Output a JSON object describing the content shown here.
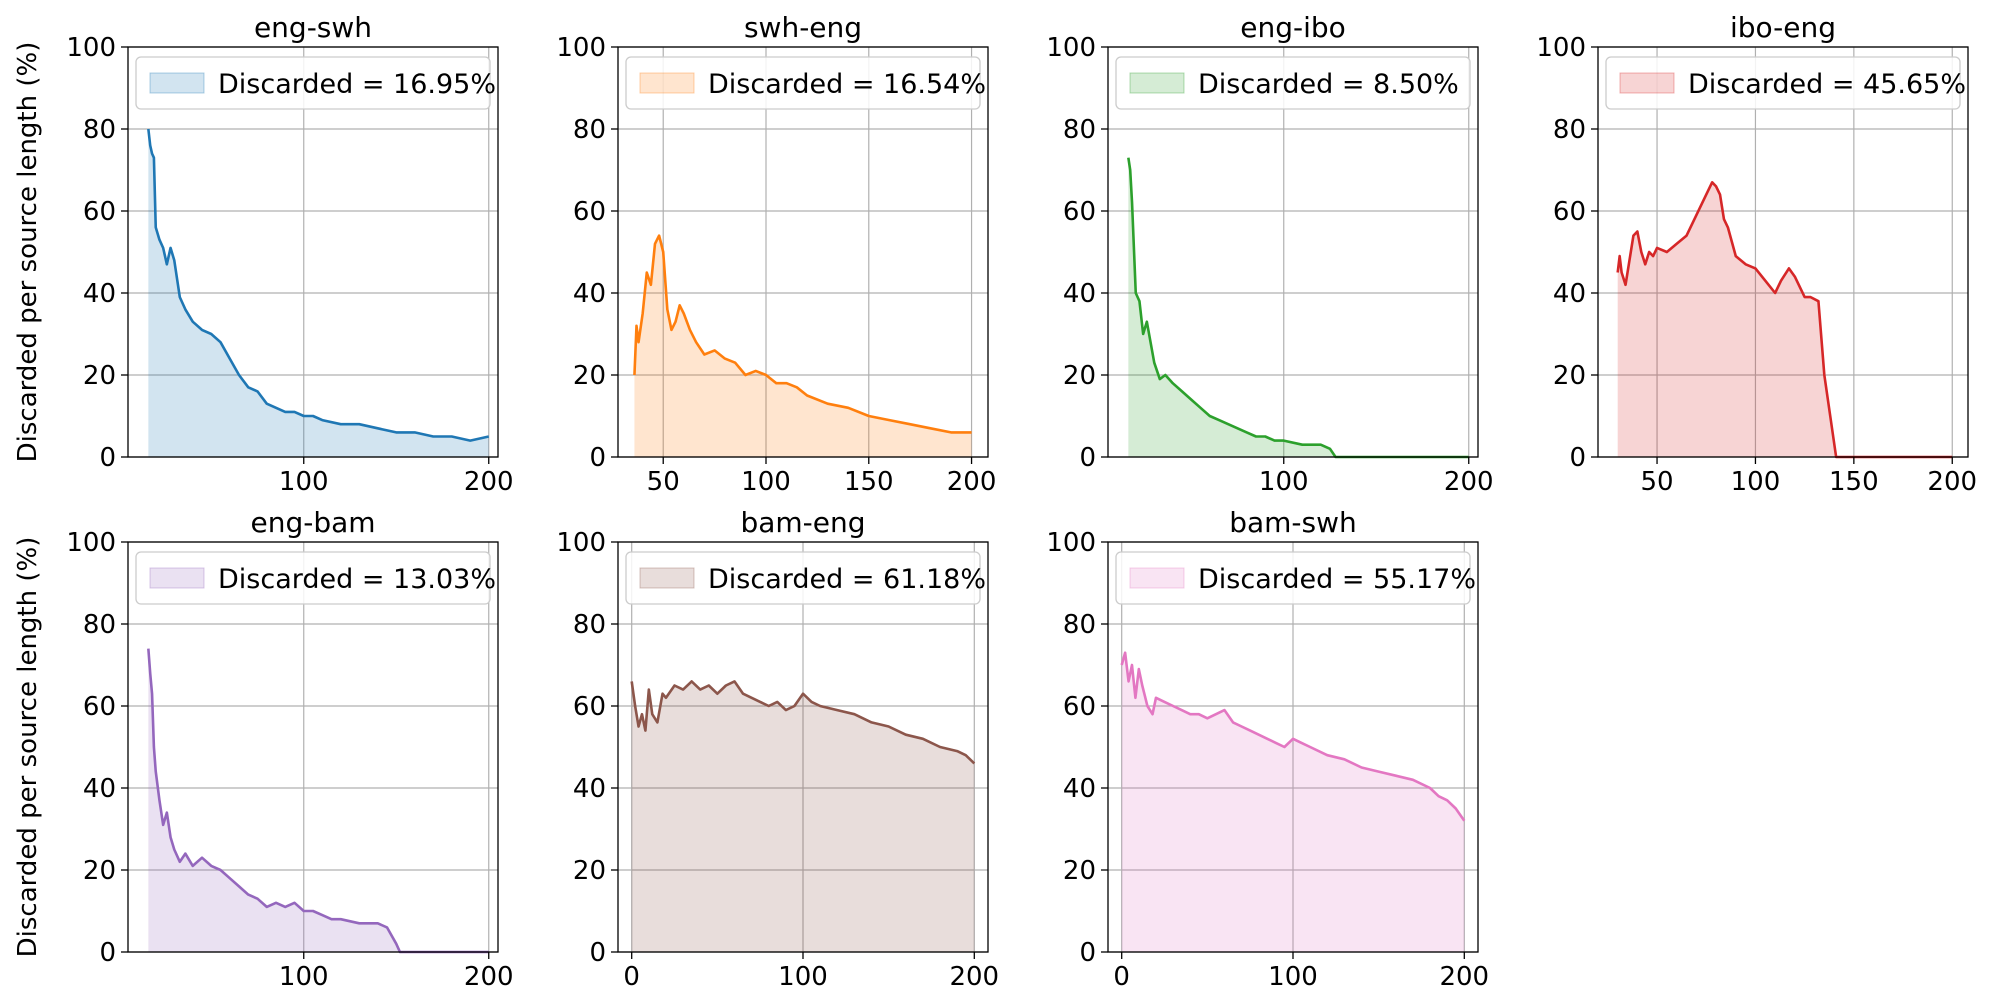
{
  "chart_data": [
    {
      "type": "area",
      "title": "eng-swh",
      "ylabel": "Discarded per source length (%)",
      "xlabel": "",
      "legend": "Discarded = 16.95%",
      "legend_placement": "top",
      "color": "#1f77b4",
      "xlim": [
        5,
        205
      ],
      "ylim": [
        0,
        100
      ],
      "xticks": [
        100,
        200
      ],
      "yticks": [
        0,
        20,
        40,
        60,
        80,
        100
      ],
      "grid": true,
      "x": [
        16,
        17,
        18,
        19,
        20,
        22,
        24,
        26,
        28,
        30,
        33,
        36,
        40,
        45,
        50,
        55,
        60,
        65,
        70,
        75,
        80,
        85,
        90,
        95,
        100,
        105,
        110,
        120,
        130,
        140,
        150,
        160,
        170,
        180,
        190,
        200
      ],
      "y": [
        80,
        76,
        74,
        73,
        56,
        53,
        51,
        47,
        51,
        48,
        39,
        36,
        33,
        31,
        30,
        28,
        24,
        20,
        17,
        16,
        13,
        12,
        11,
        11,
        10,
        10,
        9,
        8,
        8,
        7,
        6,
        6,
        5,
        5,
        4,
        5
      ]
    },
    {
      "type": "area",
      "title": "swh-eng",
      "ylabel": "",
      "xlabel": "",
      "legend": "Discarded = 16.54%",
      "legend_placement": "top",
      "color": "#ff7f0e",
      "xlim": [
        28,
        208
      ],
      "ylim": [
        0,
        100
      ],
      "xticks": [
        50,
        100,
        150,
        200
      ],
      "yticks": [
        0,
        20,
        40,
        60,
        80,
        100
      ],
      "grid": true,
      "x": [
        36,
        37,
        38,
        40,
        42,
        44,
        46,
        48,
        50,
        52,
        54,
        56,
        58,
        60,
        63,
        66,
        70,
        75,
        80,
        85,
        90,
        95,
        100,
        105,
        110,
        115,
        120,
        130,
        140,
        150,
        160,
        170,
        180,
        190,
        200
      ],
      "y": [
        20,
        32,
        28,
        35,
        45,
        42,
        52,
        54,
        50,
        36,
        31,
        33,
        37,
        35,
        31,
        28,
        25,
        26,
        24,
        23,
        20,
        21,
        20,
        18,
        18,
        17,
        15,
        13,
        12,
        10,
        9,
        8,
        7,
        6,
        6
      ]
    },
    {
      "type": "area",
      "title": "eng-ibo",
      "ylabel": "",
      "xlabel": "",
      "legend": "Discarded = 8.50%",
      "legend_placement": "top",
      "color": "#2ca02c",
      "xlim": [
        5,
        205
      ],
      "ylim": [
        0,
        100
      ],
      "xticks": [
        100,
        200
      ],
      "yticks": [
        0,
        20,
        40,
        60,
        80,
        100
      ],
      "grid": true,
      "x": [
        16,
        17,
        18,
        20,
        22,
        24,
        26,
        28,
        30,
        33,
        36,
        40,
        45,
        50,
        55,
        60,
        65,
        70,
        75,
        80,
        85,
        90,
        95,
        100,
        110,
        120,
        125,
        128,
        130,
        140,
        160,
        180,
        200
      ],
      "y": [
        73,
        70,
        62,
        40,
        38,
        30,
        33,
        28,
        23,
        19,
        20,
        18,
        16,
        14,
        12,
        10,
        9,
        8,
        7,
        6,
        5,
        5,
        4,
        4,
        3,
        3,
        2,
        0,
        0,
        0,
        0,
        0,
        0
      ]
    },
    {
      "type": "area",
      "title": "ibo-eng",
      "ylabel": "",
      "xlabel": "",
      "legend": "Discarded = 45.65%",
      "legend_placement": "top",
      "color": "#d62728",
      "xlim": [
        20,
        208
      ],
      "ylim": [
        0,
        100
      ],
      "xticks": [
        50,
        100,
        150,
        200
      ],
      "yticks": [
        0,
        20,
        40,
        60,
        80,
        100
      ],
      "grid": true,
      "x": [
        30,
        31,
        32,
        34,
        36,
        38,
        40,
        42,
        44,
        46,
        48,
        50,
        55,
        60,
        65,
        70,
        75,
        78,
        80,
        82,
        84,
        86,
        90,
        95,
        100,
        105,
        110,
        113,
        117,
        120,
        125,
        128,
        132,
        135,
        138,
        141,
        145,
        160,
        180,
        200
      ],
      "y": [
        45,
        49,
        45,
        42,
        48,
        54,
        55,
        50,
        47,
        50,
        49,
        51,
        50,
        52,
        54,
        59,
        64,
        67,
        66,
        64,
        58,
        56,
        49,
        47,
        46,
        43,
        40,
        43,
        46,
        44,
        39,
        39,
        38,
        20,
        10,
        0,
        0,
        0,
        0,
        0
      ]
    },
    {
      "type": "area",
      "title": "eng-bam",
      "ylabel": "Discarded per source length (%)",
      "xlabel": "",
      "legend": "Discarded = 13.03%",
      "legend_placement": "top",
      "color": "#9467bd",
      "xlim": [
        5,
        205
      ],
      "ylim": [
        0,
        100
      ],
      "xticks": [
        100,
        200
      ],
      "yticks": [
        0,
        20,
        40,
        60,
        80,
        100
      ],
      "grid": true,
      "x": [
        16,
        17,
        18,
        19,
        20,
        22,
        24,
        26,
        28,
        30,
        33,
        36,
        40,
        45,
        50,
        55,
        60,
        65,
        70,
        75,
        80,
        85,
        90,
        95,
        100,
        105,
        110,
        115,
        120,
        130,
        140,
        145,
        150,
        152,
        160,
        180,
        200
      ],
      "y": [
        74,
        68,
        63,
        50,
        44,
        37,
        31,
        34,
        28,
        25,
        22,
        24,
        21,
        23,
        21,
        20,
        18,
        16,
        14,
        13,
        11,
        12,
        11,
        12,
        10,
        10,
        9,
        8,
        8,
        7,
        7,
        6,
        2,
        0,
        0,
        0,
        0
      ]
    },
    {
      "type": "area",
      "title": "bam-eng",
      "ylabel": "",
      "xlabel": "",
      "legend": "Discarded = 61.18%",
      "legend_placement": "top",
      "color": "#8c564b",
      "xlim": [
        -8,
        208
      ],
      "ylim": [
        0,
        100
      ],
      "xticks": [
        0,
        100,
        200
      ],
      "yticks": [
        0,
        20,
        40,
        60,
        80,
        100
      ],
      "grid": true,
      "x": [
        0,
        2,
        4,
        6,
        8,
        10,
        12,
        15,
        18,
        20,
        25,
        30,
        35,
        40,
        45,
        50,
        55,
        60,
        65,
        70,
        75,
        80,
        85,
        90,
        95,
        100,
        105,
        110,
        120,
        130,
        140,
        150,
        160,
        170,
        180,
        190,
        195,
        200
      ],
      "y": [
        66,
        60,
        55,
        58,
        54,
        64,
        58,
        56,
        63,
        62,
        65,
        64,
        66,
        64,
        65,
        63,
        65,
        66,
        63,
        62,
        61,
        60,
        61,
        59,
        60,
        63,
        61,
        60,
        59,
        58,
        56,
        55,
        53,
        52,
        50,
        49,
        48,
        46
      ]
    },
    {
      "type": "area",
      "title": "bam-swh",
      "ylabel": "",
      "xlabel": "",
      "legend": "Discarded = 55.17%",
      "legend_placement": "top",
      "color": "#e377c2",
      "xlim": [
        -8,
        208
      ],
      "ylim": [
        0,
        100
      ],
      "xticks": [
        0,
        100,
        200
      ],
      "yticks": [
        0,
        20,
        40,
        60,
        80,
        100
      ],
      "grid": true,
      "x": [
        0,
        2,
        4,
        6,
        8,
        10,
        12,
        15,
        18,
        20,
        25,
        30,
        35,
        40,
        45,
        50,
        55,
        60,
        65,
        70,
        75,
        80,
        85,
        90,
        95,
        100,
        105,
        110,
        120,
        130,
        140,
        150,
        160,
        170,
        180,
        185,
        190,
        195,
        200
      ],
      "y": [
        70,
        73,
        66,
        70,
        62,
        69,
        65,
        60,
        58,
        62,
        61,
        60,
        59,
        58,
        58,
        57,
        58,
        59,
        56,
        55,
        54,
        53,
        52,
        51,
        50,
        52,
        51,
        50,
        48,
        47,
        45,
        44,
        43,
        42,
        40,
        38,
        37,
        35,
        32
      ]
    }
  ]
}
